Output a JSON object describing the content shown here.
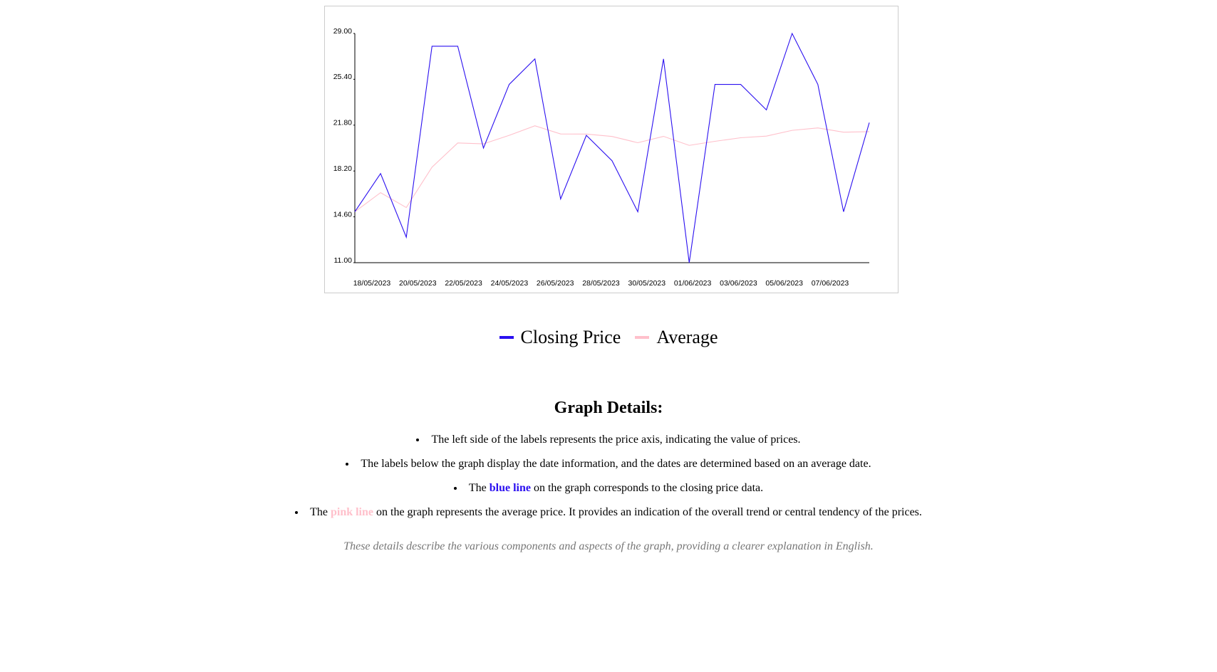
{
  "chart_data": {
    "type": "line",
    "categories": [
      "18/05/2023",
      null,
      "20/05/2023",
      null,
      "22/05/2023",
      null,
      "24/05/2023",
      null,
      "26/05/2023",
      null,
      "28/05/2023",
      null,
      "30/05/2023",
      null,
      "01/06/2023",
      null,
      "03/06/2023",
      null,
      "05/06/2023",
      null,
      "07/06/2023"
    ],
    "series": [
      {
        "name": "Closing Price",
        "color": "#2b10f0",
        "values": [
          15,
          18,
          13,
          28,
          28,
          20,
          25,
          27,
          16,
          21,
          19,
          15,
          27,
          11,
          25,
          25,
          23,
          29,
          25,
          15,
          22
        ]
      },
      {
        "name": "Average",
        "color": "#ffc0cb",
        "values": [
          15,
          16.5,
          15.33,
          18.5,
          20.4,
          20.33,
          21,
          21.75,
          21.11,
          21.1,
          20.91,
          20.42,
          20.92,
          20.21,
          20.53,
          20.81,
          20.94,
          21.39,
          21.58,
          21.25,
          21.29
        ]
      }
    ],
    "ylim": [
      11,
      29
    ],
    "yticks": [
      {
        "value": 11,
        "label": "11.00"
      },
      {
        "value": 14.6,
        "label": "14.60"
      },
      {
        "value": 18.2,
        "label": "18.20"
      },
      {
        "value": 21.8,
        "label": "21.80"
      },
      {
        "value": 25.4,
        "label": "25.40"
      },
      {
        "value": 29,
        "label": "29.00"
      }
    ],
    "grid": false
  },
  "details": {
    "title": "Graph Details:",
    "items": [
      {
        "text": "The left side of the labels represents the price axis, indicating the value of prices."
      },
      {
        "text": "The labels below the graph display the date information, and the dates are determined based on an average date."
      },
      {
        "before": "The ",
        "highlight": "blue line",
        "after": " on the graph corresponds to the closing price data."
      },
      {
        "before": "The ",
        "highlight": "pink line",
        "after": " on the graph represents the average price. It provides an indication of the overall trend or central tendency of the prices."
      }
    ],
    "note": "These details describe the various components and aspects of the graph, providing a clearer explanation in English."
  }
}
